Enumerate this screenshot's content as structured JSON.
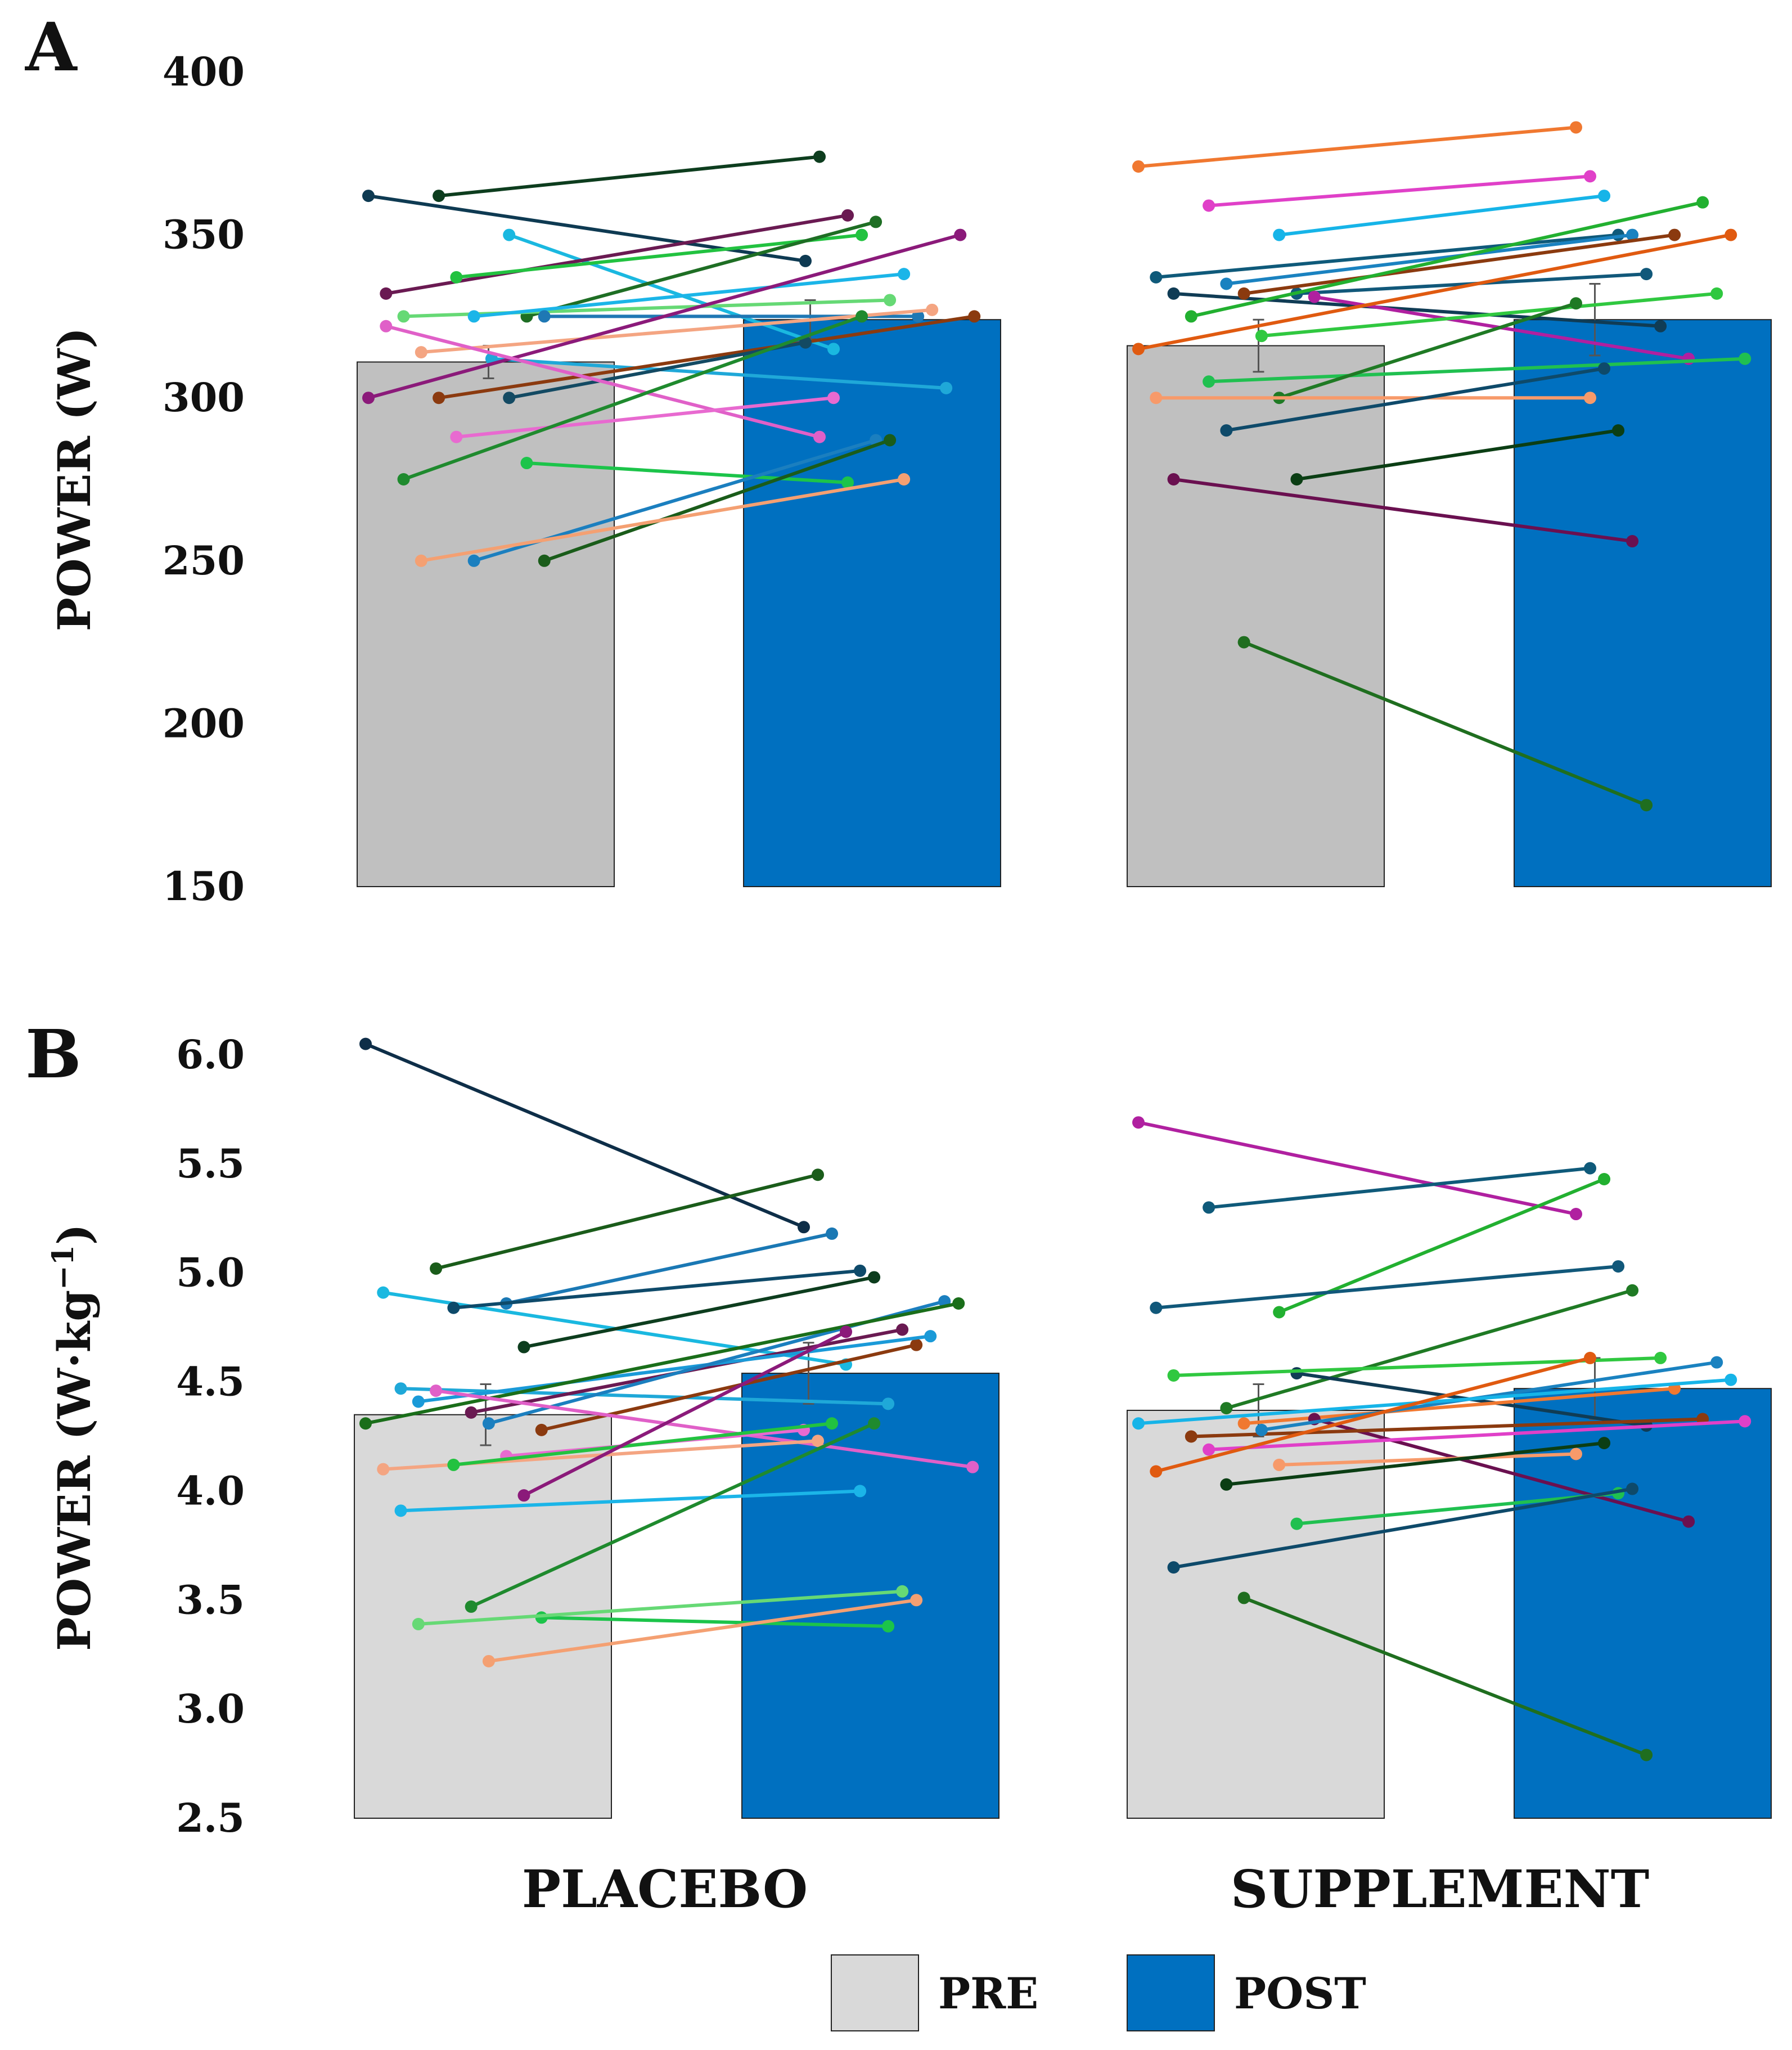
{
  "chart_data": [
    {
      "panel_label": "A",
      "type": "bar",
      "ylabel": "POWER (W)",
      "ylim": [
        150,
        400
      ],
      "yticks": [
        150,
        200,
        250,
        300,
        350,
        400
      ],
      "groups": [
        "PLACEBO",
        "SUPPLEMENT"
      ],
      "series": [
        {
          "name": "PRE",
          "values": [
            311,
            316
          ],
          "err": [
            5,
            8
          ]
        },
        {
          "name": "POST",
          "values": [
            324,
            324
          ],
          "err": [
            6,
            11
          ]
        }
      ],
      "subjects": [
        {
          "group": 0,
          "pre": 362,
          "post": 342,
          "color": "#0e3a52"
        },
        {
          "group": 0,
          "pre": 362,
          "post": 374,
          "color": "#0d3d1e"
        },
        {
          "group": 0,
          "pre": 350,
          "post": 315,
          "color": "#1ab8e0"
        },
        {
          "group": 0,
          "pre": 332,
          "post": 356,
          "color": "#6a1a52"
        },
        {
          "group": 0,
          "pre": 337,
          "post": 350,
          "color": "#22c240"
        },
        {
          "group": 0,
          "pre": 325,
          "post": 354,
          "color": "#1e6e24"
        },
        {
          "group": 0,
          "pre": 325,
          "post": 330,
          "color": "#66d975"
        },
        {
          "group": 0,
          "pre": 325,
          "post": 338,
          "color": "#1bb5e8"
        },
        {
          "group": 0,
          "pre": 325,
          "post": 325,
          "color": "#1f78b4"
        },
        {
          "group": 0,
          "pre": 314,
          "post": 327,
          "color": "#f4a582"
        },
        {
          "group": 0,
          "pre": 312,
          "post": 303,
          "color": "#1fa8d8"
        },
        {
          "group": 0,
          "pre": 300,
          "post": 350,
          "color": "#8b1a7a"
        },
        {
          "group": 0,
          "pre": 300,
          "post": 325,
          "color": "#8b3a0f"
        },
        {
          "group": 0,
          "pre": 300,
          "post": 317,
          "color": "#134a63"
        },
        {
          "group": 0,
          "pre": 322,
          "post": 288,
          "color": "#e060c8"
        },
        {
          "group": 0,
          "pre": 288,
          "post": 300,
          "color": "#e86ad0"
        },
        {
          "group": 0,
          "pre": 280,
          "post": 274,
          "color": "#1cc44a"
        },
        {
          "group": 0,
          "pre": 275,
          "post": 325,
          "color": "#1f8a2e"
        },
        {
          "group": 0,
          "pre": 250,
          "post": 287,
          "color": "#1b7fbf"
        },
        {
          "group": 0,
          "pre": 250,
          "post": 287,
          "color": "#1a5c1a"
        },
        {
          "group": 0,
          "pre": 250,
          "post": 275,
          "color": "#f4a072"
        },
        {
          "group": 1,
          "pre": 371,
          "post": 383,
          "color": "#f07830"
        },
        {
          "group": 1,
          "pre": 359,
          "post": 368,
          "color": "#e040c8"
        },
        {
          "group": 1,
          "pre": 350,
          "post": 362,
          "color": "#16b4e8"
        },
        {
          "group": 1,
          "pre": 337,
          "post": 350,
          "color": "#0f5a7a"
        },
        {
          "group": 1,
          "pre": 335,
          "post": 350,
          "color": "#1a82c0"
        },
        {
          "group": 1,
          "pre": 332,
          "post": 338,
          "color": "#11587a"
        },
        {
          "group": 1,
          "pre": 332,
          "post": 322,
          "color": "#103c55"
        },
        {
          "group": 1,
          "pre": 332,
          "post": 350,
          "color": "#8b3a0f"
        },
        {
          "group": 1,
          "pre": 331,
          "post": 312,
          "color": "#b020a0"
        },
        {
          "group": 1,
          "pre": 325,
          "post": 360,
          "color": "#22b030"
        },
        {
          "group": 1,
          "pre": 319,
          "post": 332,
          "color": "#30c840"
        },
        {
          "group": 1,
          "pre": 315,
          "post": 350,
          "color": "#e05a10"
        },
        {
          "group": 1,
          "pre": 305,
          "post": 312,
          "color": "#20c050"
        },
        {
          "group": 1,
          "pre": 300,
          "post": 329,
          "color": "#1f7a24"
        },
        {
          "group": 1,
          "pre": 300,
          "post": 300,
          "color": "#f79a6a"
        },
        {
          "group": 1,
          "pre": 290,
          "post": 309,
          "color": "#0e4a6a"
        },
        {
          "group": 1,
          "pre": 275,
          "post": 290,
          "color": "#0b3e14"
        },
        {
          "group": 1,
          "pre": 275,
          "post": 256,
          "color": "#6a1050"
        },
        {
          "group": 1,
          "pre": 225,
          "post": 175,
          "color": "#1f6e1f"
        }
      ]
    },
    {
      "panel_label": "B",
      "type": "bar",
      "ylabel": "POWER (W·kg",
      "ylabel_sup": "−1",
      "ylabel_end": ")",
      "ylim": [
        2.5,
        6.0
      ],
      "yticks": [
        "2.5",
        "3.0",
        "3.5",
        "4.0",
        "4.5",
        "5.0",
        "5.5",
        "6.0"
      ],
      "groups": [
        "PLACEBO",
        "SUPPLEMENT"
      ],
      "series": [
        {
          "name": "PRE",
          "values": [
            4.35,
            4.37
          ],
          "err": [
            0.14,
            0.12
          ]
        },
        {
          "name": "POST",
          "values": [
            4.54,
            4.47
          ],
          "err": [
            0.14,
            0.14
          ]
        }
      ],
      "subjects": [
        {
          "group": 0,
          "pre": 6.05,
          "post": 5.21,
          "color": "#0e2e48"
        },
        {
          "group": 0,
          "pre": 5.02,
          "post": 5.45,
          "color": "#1a5c1a"
        },
        {
          "group": 0,
          "pre": 4.86,
          "post": 5.18,
          "color": "#1a78b4"
        },
        {
          "group": 0,
          "pre": 4.91,
          "post": 4.58,
          "color": "#1ab8e0"
        },
        {
          "group": 0,
          "pre": 4.84,
          "post": 5.01,
          "color": "#0e4a6a"
        },
        {
          "group": 0,
          "pre": 4.66,
          "post": 4.98,
          "color": "#0d3d1e"
        },
        {
          "group": 0,
          "pre": 4.47,
          "post": 4.4,
          "color": "#1fa8d8"
        },
        {
          "group": 0,
          "pre": 4.36,
          "post": 4.74,
          "color": "#6a1a52"
        },
        {
          "group": 0,
          "pre": 4.28,
          "post": 4.67,
          "color": "#8b3a0f"
        },
        {
          "group": 0,
          "pre": 4.41,
          "post": 4.71,
          "color": "#1a9ad8"
        },
        {
          "group": 0,
          "pre": 4.31,
          "post": 4.87,
          "color": "#1b7fbf"
        },
        {
          "group": 0,
          "pre": 4.31,
          "post": 4.86,
          "color": "#1a6e1a"
        },
        {
          "group": 0,
          "pre": 4.46,
          "post": 4.11,
          "color": "#e060c8"
        },
        {
          "group": 0,
          "pre": 4.16,
          "post": 4.28,
          "color": "#e86ad0"
        },
        {
          "group": 0,
          "pre": 4.1,
          "post": 4.23,
          "color": "#f4a582"
        },
        {
          "group": 0,
          "pre": 4.12,
          "post": 4.31,
          "color": "#22c240"
        },
        {
          "group": 0,
          "pre": 3.98,
          "post": 4.73,
          "color": "#8b1a7a"
        },
        {
          "group": 0,
          "pre": 3.91,
          "post": 4.0,
          "color": "#1bb5e8"
        },
        {
          "group": 0,
          "pre": 3.47,
          "post": 4.31,
          "color": "#1f8a2e"
        },
        {
          "group": 0,
          "pre": 3.42,
          "post": 3.38,
          "color": "#1cc44a"
        },
        {
          "group": 0,
          "pre": 3.39,
          "post": 3.54,
          "color": "#66d975"
        },
        {
          "group": 0,
          "pre": 3.22,
          "post": 3.5,
          "color": "#f4a072"
        },
        {
          "group": 1,
          "pre": 5.69,
          "post": 5.27,
          "color": "#b020a0"
        },
        {
          "group": 1,
          "pre": 5.3,
          "post": 5.48,
          "color": "#0f5a7a"
        },
        {
          "group": 1,
          "pre": 4.82,
          "post": 5.43,
          "color": "#22b030"
        },
        {
          "group": 1,
          "pre": 4.84,
          "post": 5.03,
          "color": "#11587a"
        },
        {
          "group": 1,
          "pre": 4.38,
          "post": 4.92,
          "color": "#1f7a24"
        },
        {
          "group": 1,
          "pre": 4.54,
          "post": 4.3,
          "color": "#103c55"
        },
        {
          "group": 1,
          "pre": 4.53,
          "post": 4.61,
          "color": "#30c840"
        },
        {
          "group": 1,
          "pre": 4.31,
          "post": 4.47,
          "color": "#f07830"
        },
        {
          "group": 1,
          "pre": 4.33,
          "post": 3.86,
          "color": "#6a1050"
        },
        {
          "group": 1,
          "pre": 4.25,
          "post": 4.33,
          "color": "#8b3a0f"
        },
        {
          "group": 1,
          "pre": 4.28,
          "post": 4.59,
          "color": "#1a82c0"
        },
        {
          "group": 1,
          "pre": 4.31,
          "post": 4.51,
          "color": "#16b4e8"
        },
        {
          "group": 1,
          "pre": 4.19,
          "post": 4.32,
          "color": "#e040c8"
        },
        {
          "group": 1,
          "pre": 4.12,
          "post": 4.17,
          "color": "#f79a6a"
        },
        {
          "group": 1,
          "pre": 4.09,
          "post": 4.61,
          "color": "#e05a10"
        },
        {
          "group": 1,
          "pre": 4.03,
          "post": 4.22,
          "color": "#0b3e14"
        },
        {
          "group": 1,
          "pre": 3.85,
          "post": 3.99,
          "color": "#20c050"
        },
        {
          "group": 1,
          "pre": 3.65,
          "post": 4.01,
          "color": "#0e4a6a"
        },
        {
          "group": 1,
          "pre": 3.51,
          "post": 2.79,
          "color": "#1f6e1f"
        }
      ]
    }
  ],
  "legend": [
    {
      "label": "PRE",
      "color": "#d9d9d9"
    },
    {
      "label": "POST",
      "color": "#0070c0"
    }
  ],
  "colors": {
    "pre_bar_a": "#c0c0c0",
    "pre_bar_b": "#d9d9d9",
    "post_bar": "#0070c0"
  }
}
